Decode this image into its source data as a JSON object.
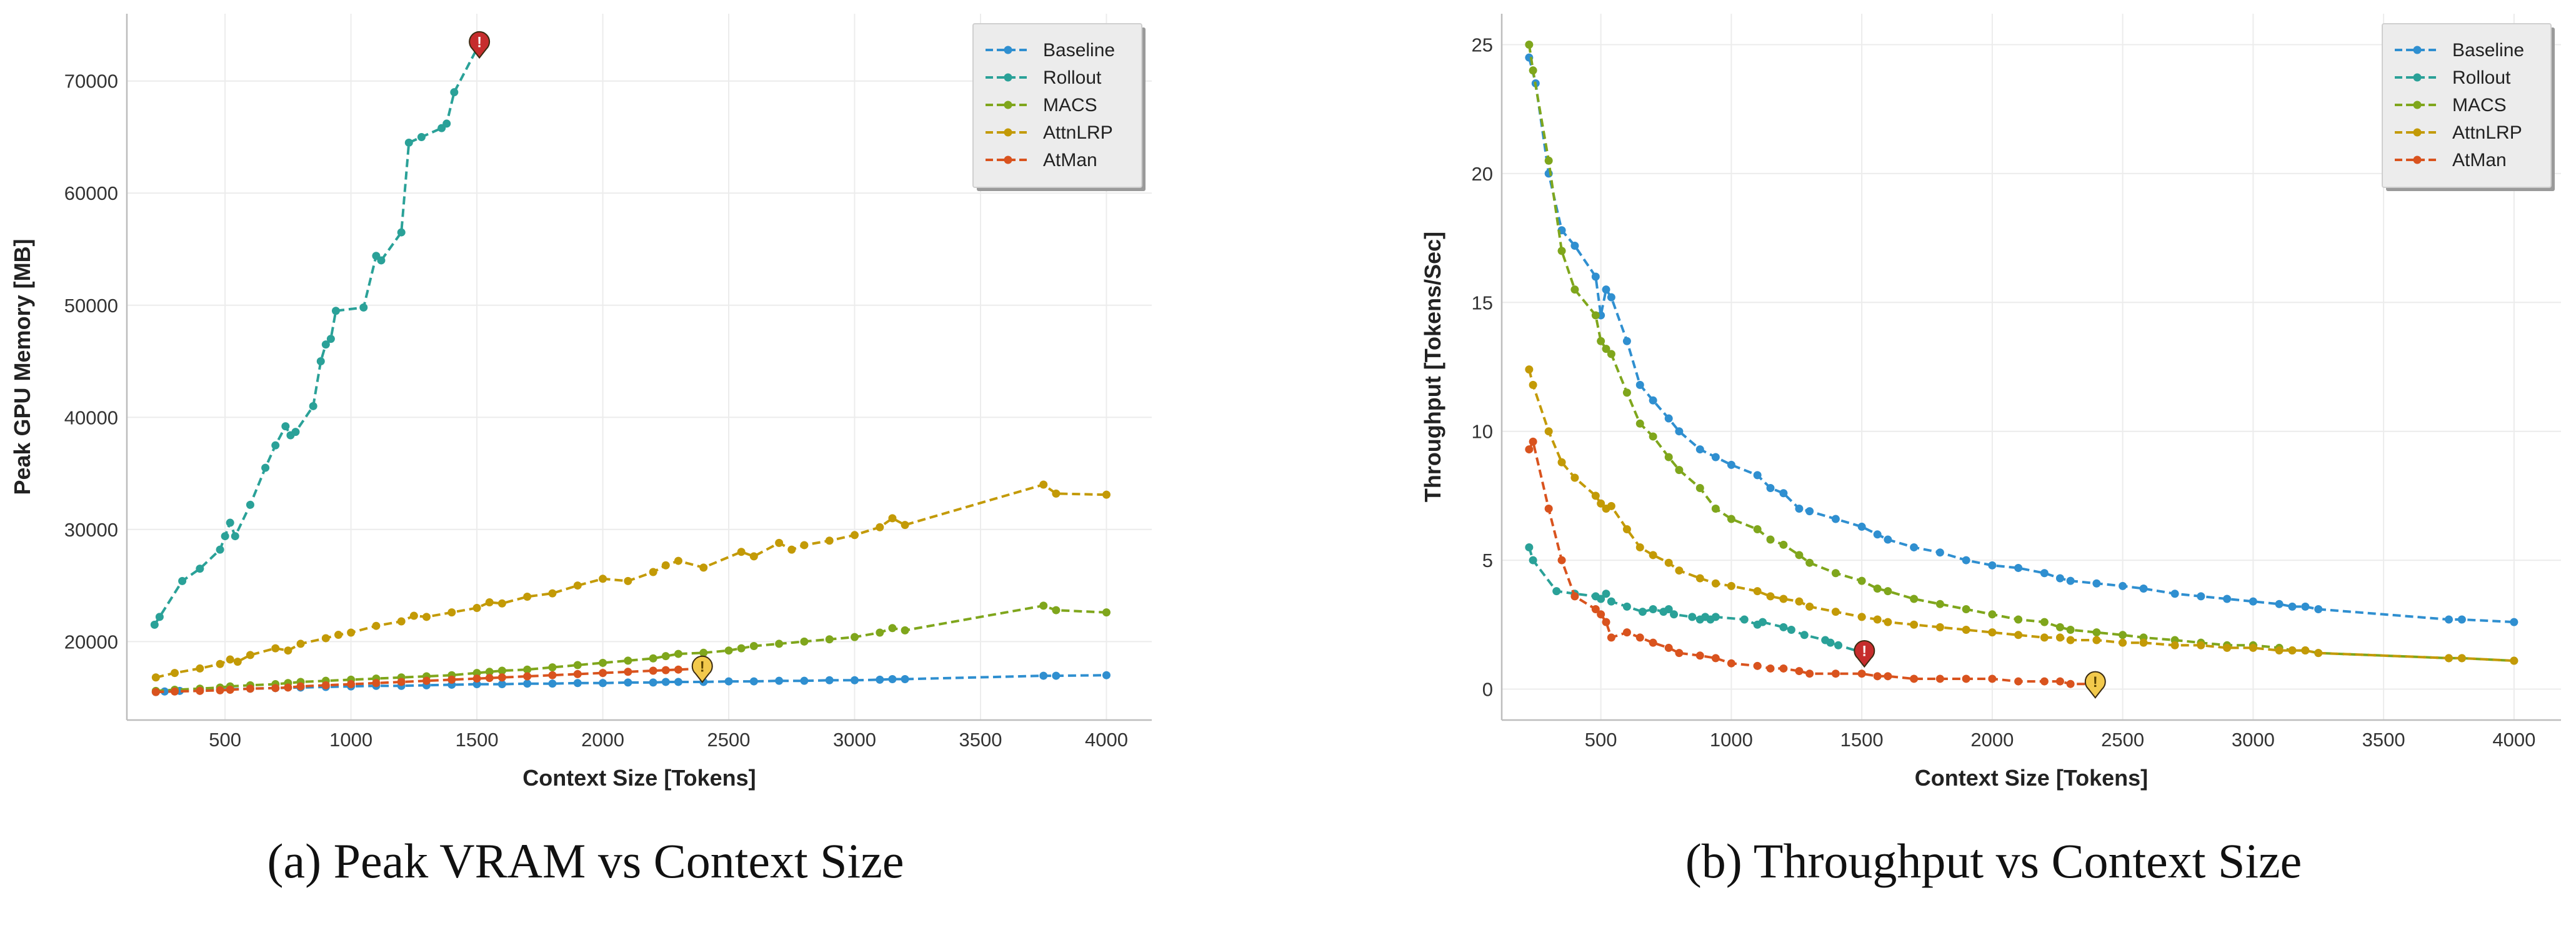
{
  "chart_data": [
    {
      "type": "line",
      "panel": "a",
      "caption": "(a) Peak VRAM vs Context Size",
      "xlabel": "Context Size [Tokens]",
      "ylabel": "Peak GPU Memory [MB]",
      "xlim": [
        110,
        4180
      ],
      "ylim": [
        13000,
        76000
      ],
      "xticks": [
        500,
        1000,
        1500,
        2000,
        2500,
        3000,
        3500,
        4000
      ],
      "xtick_labels": [
        "500",
        "1000",
        "1500",
        "2000",
        "2500",
        "3000",
        "3500",
        "4000"
      ],
      "yticks": [
        20000,
        30000,
        40000,
        50000,
        60000,
        70000
      ],
      "ytick_labels": [
        "20000",
        "30000",
        "40000",
        "50000",
        "60000",
        "70000"
      ],
      "grid": true,
      "legend_position": "top-right",
      "series": [
        {
          "name": "Baseline",
          "color": "#2f8fd0",
          "x": [
            225,
            260,
            320,
            400,
            480,
            520,
            600,
            700,
            800,
            900,
            1000,
            1100,
            1200,
            1300,
            1400,
            1500,
            1600,
            1700,
            1800,
            1900,
            2000,
            2100,
            2200,
            2250,
            2300,
            2400,
            2500,
            2600,
            2700,
            2800,
            2900,
            3000,
            3100,
            3150,
            3200,
            3750,
            3800,
            4000
          ],
          "y": [
            15500,
            15550,
            15600,
            15650,
            15700,
            15750,
            15800,
            15850,
            15900,
            15950,
            16000,
            16050,
            16050,
            16100,
            16150,
            16200,
            16200,
            16250,
            16250,
            16300,
            16300,
            16350,
            16350,
            16400,
            16400,
            16400,
            16450,
            16450,
            16500,
            16500,
            16550,
            16550,
            16600,
            16650,
            16650,
            16950,
            16950,
            17000
          ]
        },
        {
          "name": "Rollout",
          "color": "#2aa198",
          "x": [
            220,
            240,
            330,
            400,
            480,
            500,
            520,
            540,
            600,
            660,
            700,
            740,
            760,
            780,
            850,
            880,
            900,
            920,
            940,
            1050,
            1100,
            1120,
            1200,
            1230,
            1280,
            1360,
            1380,
            1410,
            1510
          ],
          "y": [
            21500,
            22200,
            25400,
            26500,
            28200,
            29400,
            30600,
            29400,
            32200,
            35500,
            37500,
            39200,
            38400,
            38700,
            41000,
            45000,
            46500,
            47000,
            49500,
            49800,
            54400,
            54000,
            56500,
            64500,
            65000,
            65800,
            66200,
            69000,
            73300
          ]
        },
        {
          "name": "MACS",
          "color": "#7fa61c",
          "x": [
            225,
            300,
            400,
            480,
            520,
            600,
            700,
            750,
            800,
            900,
            1000,
            1100,
            1200,
            1300,
            1400,
            1500,
            1550,
            1600,
            1700,
            1800,
            1900,
            2000,
            2100,
            2200,
            2250,
            2300,
            2400,
            2500,
            2550,
            2600,
            2700,
            2800,
            2900,
            3000,
            3100,
            3150,
            3200,
            3750,
            3800,
            4000
          ],
          "y": [
            15600,
            15700,
            15800,
            15900,
            16000,
            16100,
            16200,
            16300,
            16400,
            16500,
            16600,
            16700,
            16800,
            16900,
            17000,
            17200,
            17300,
            17400,
            17500,
            17700,
            17900,
            18100,
            18300,
            18500,
            18700,
            18900,
            19000,
            19200,
            19400,
            19600,
            19800,
            20000,
            20200,
            20400,
            20800,
            21200,
            21000,
            23200,
            22800,
            22600
          ]
        },
        {
          "name": "AttnLRP",
          "color": "#c39a06",
          "x": [
            225,
            300,
            400,
            480,
            520,
            550,
            600,
            700,
            750,
            800,
            900,
            950,
            1000,
            1100,
            1200,
            1250,
            1300,
            1400,
            1500,
            1550,
            1600,
            1700,
            1800,
            1900,
            2000,
            2100,
            2200,
            2250,
            2300,
            2400,
            2550,
            2600,
            2700,
            2750,
            2800,
            2900,
            3000,
            3100,
            3150,
            3200,
            3750,
            3800,
            4000
          ],
          "y": [
            16800,
            17200,
            17600,
            18000,
            18400,
            18200,
            18800,
            19400,
            19200,
            19800,
            20300,
            20600,
            20800,
            21400,
            21800,
            22300,
            22200,
            22600,
            23000,
            23500,
            23400,
            24000,
            24300,
            25000,
            25600,
            25400,
            26200,
            26800,
            27200,
            26600,
            28000,
            27600,
            28800,
            28200,
            28600,
            29000,
            29500,
            30200,
            31000,
            30400,
            34000,
            33200,
            33100
          ]
        },
        {
          "name": "AtMan",
          "color": "#d9531e",
          "x": [
            225,
            300,
            400,
            480,
            520,
            600,
            700,
            750,
            800,
            900,
            1000,
            1100,
            1200,
            1300,
            1400,
            1500,
            1550,
            1600,
            1700,
            1800,
            1900,
            2000,
            2100,
            2200,
            2250,
            2300,
            2400
          ],
          "y": [
            15500,
            15550,
            15600,
            15650,
            15700,
            15800,
            15850,
            15900,
            16000,
            16100,
            16200,
            16300,
            16400,
            16500,
            16600,
            16700,
            16750,
            16800,
            16900,
            17000,
            17100,
            17200,
            17300,
            17400,
            17450,
            17500,
            17600
          ]
        }
      ],
      "annotations": [
        {
          "symbol": "!",
          "series": "Rollout",
          "x": 1510,
          "y": 73300,
          "color": "#c62d2d"
        },
        {
          "symbol": "!",
          "series": "AtMan",
          "x": 2395,
          "y": 17600,
          "color": "#f2c94c"
        }
      ]
    },
    {
      "type": "line",
      "panel": "b",
      "caption": "(b) Throughput vs Context Size",
      "xlabel": "Context Size [Tokens]",
      "ylabel": "Throughput [Tokens/Sec]",
      "xlim": [
        120,
        4180
      ],
      "ylim": [
        -1.2,
        26.2
      ],
      "xticks": [
        500,
        1000,
        1500,
        2000,
        2500,
        3000,
        3500,
        4000
      ],
      "xtick_labels": [
        "500",
        "1000",
        "1500",
        "2000",
        "2500",
        "3000",
        "3500",
        "4000"
      ],
      "yticks": [
        0,
        5,
        10,
        15,
        20,
        25
      ],
      "ytick_labels": [
        "0",
        "5",
        "10",
        "15",
        "20",
        "25"
      ],
      "grid": true,
      "legend_position": "top-right",
      "series": [
        {
          "name": "Baseline",
          "color": "#2f8fd0",
          "x": [
            225,
            250,
            300,
            350,
            400,
            480,
            500,
            520,
            540,
            600,
            650,
            700,
            760,
            800,
            880,
            940,
            1000,
            1100,
            1150,
            1200,
            1260,
            1300,
            1400,
            1500,
            1560,
            1600,
            1700,
            1800,
            1900,
            2000,
            2100,
            2200,
            2260,
            2300,
            2400,
            2500,
            2580,
            2700,
            2800,
            2900,
            3000,
            3100,
            3150,
            3200,
            3250,
            3750,
            3800,
            4000
          ],
          "y": [
            24.5,
            23.5,
            20.0,
            17.8,
            17.2,
            16.0,
            14.5,
            15.5,
            15.2,
            13.5,
            11.8,
            11.2,
            10.5,
            10.0,
            9.3,
            9.0,
            8.7,
            8.3,
            7.8,
            7.6,
            7.0,
            6.9,
            6.6,
            6.3,
            6.0,
            5.8,
            5.5,
            5.3,
            5.0,
            4.8,
            4.7,
            4.5,
            4.3,
            4.2,
            4.1,
            4.0,
            3.9,
            3.7,
            3.6,
            3.5,
            3.4,
            3.3,
            3.2,
            3.2,
            3.1,
            2.7,
            2.7,
            2.6
          ]
        },
        {
          "name": "Rollout",
          "color": "#2aa198",
          "x": [
            225,
            240,
            330,
            400,
            480,
            500,
            520,
            540,
            600,
            660,
            700,
            740,
            760,
            780,
            850,
            880,
            900,
            920,
            940,
            1050,
            1100,
            1120,
            1200,
            1230,
            1280,
            1360,
            1380,
            1410,
            1510
          ],
          "y": [
            5.5,
            5.0,
            3.8,
            3.7,
            3.6,
            3.5,
            3.7,
            3.4,
            3.2,
            3.0,
            3.1,
            3.0,
            3.1,
            2.9,
            2.8,
            2.7,
            2.8,
            2.7,
            2.8,
            2.7,
            2.5,
            2.6,
            2.4,
            2.3,
            2.1,
            1.9,
            1.8,
            1.7,
            1.4
          ]
        },
        {
          "name": "MACS",
          "color": "#7fa61c",
          "x": [
            225,
            240,
            300,
            350,
            400,
            480,
            500,
            520,
            540,
            600,
            650,
            700,
            760,
            800,
            880,
            940,
            1000,
            1100,
            1150,
            1200,
            1260,
            1300,
            1400,
            1500,
            1560,
            1600,
            1700,
            1800,
            1900,
            2000,
            2100,
            2200,
            2260,
            2300,
            2400,
            2500,
            2580,
            2700,
            2800,
            2900,
            3000,
            3100,
            3150,
            3200,
            3250,
            3750,
            3800,
            4000
          ],
          "y": [
            25.0,
            24.0,
            20.5,
            17.0,
            15.5,
            14.5,
            13.5,
            13.2,
            13.0,
            11.5,
            10.3,
            9.8,
            9.0,
            8.5,
            7.8,
            7.0,
            6.6,
            6.2,
            5.8,
            5.6,
            5.2,
            4.9,
            4.5,
            4.2,
            3.9,
            3.8,
            3.5,
            3.3,
            3.1,
            2.9,
            2.7,
            2.6,
            2.4,
            2.3,
            2.2,
            2.1,
            2.0,
            1.9,
            1.8,
            1.7,
            1.7,
            1.6,
            1.5,
            1.5,
            1.4,
            1.2,
            1.2,
            1.1
          ]
        },
        {
          "name": "AttnLRP",
          "color": "#c39a06",
          "x": [
            225,
            240,
            300,
            350,
            400,
            480,
            500,
            520,
            540,
            600,
            650,
            700,
            760,
            800,
            880,
            940,
            1000,
            1100,
            1150,
            1200,
            1260,
            1300,
            1400,
            1500,
            1560,
            1600,
            1700,
            1800,
            1900,
            2000,
            2100,
            2200,
            2260,
            2300,
            2400,
            2500,
            2580,
            2700,
            2800,
            2900,
            3000,
            3100,
            3150,
            3200,
            3250,
            3750,
            3800,
            4000
          ],
          "y": [
            12.4,
            11.8,
            10.0,
            8.8,
            8.2,
            7.5,
            7.2,
            7.0,
            7.1,
            6.2,
            5.5,
            5.2,
            4.9,
            4.6,
            4.3,
            4.1,
            4.0,
            3.8,
            3.6,
            3.5,
            3.4,
            3.2,
            3.0,
            2.8,
            2.7,
            2.6,
            2.5,
            2.4,
            2.3,
            2.2,
            2.1,
            2.0,
            2.0,
            1.9,
            1.9,
            1.8,
            1.8,
            1.7,
            1.7,
            1.6,
            1.6,
            1.5,
            1.5,
            1.5,
            1.4,
            1.2,
            1.2,
            1.1
          ]
        },
        {
          "name": "AtMan",
          "color": "#d9531e",
          "x": [
            225,
            240,
            300,
            350,
            400,
            480,
            500,
            520,
            540,
            600,
            650,
            700,
            760,
            800,
            880,
            940,
            1000,
            1100,
            1150,
            1200,
            1260,
            1300,
            1400,
            1500,
            1560,
            1600,
            1700,
            1800,
            1900,
            2000,
            2100,
            2200,
            2260,
            2300,
            2400
          ],
          "y": [
            9.3,
            9.6,
            7.0,
            5.0,
            3.6,
            3.1,
            2.9,
            2.6,
            2.0,
            2.2,
            2.0,
            1.8,
            1.6,
            1.4,
            1.3,
            1.2,
            1.0,
            0.9,
            0.8,
            0.8,
            0.7,
            0.6,
            0.6,
            0.6,
            0.5,
            0.5,
            0.4,
            0.4,
            0.4,
            0.4,
            0.3,
            0.3,
            0.3,
            0.2,
            0.2
          ]
        }
      ],
      "annotations": [
        {
          "symbol": "!",
          "series": "Rollout",
          "x": 1510,
          "y": 1.4,
          "color": "#c62d2d"
        },
        {
          "symbol": "!",
          "series": "AtMan",
          "x": 2395,
          "y": 0.2,
          "color": "#f2c94c"
        }
      ]
    }
  ]
}
